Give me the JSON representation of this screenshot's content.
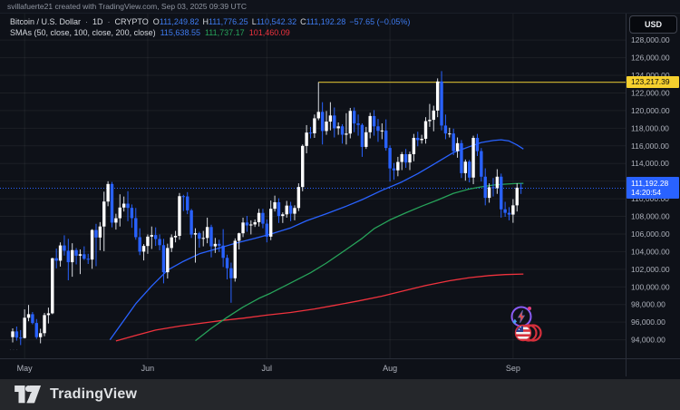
{
  "attribution": "svillafuerte21 created with TradingView.com, Sep 03, 2025 09:39 UTC",
  "legend": {
    "symbol": "Bitcoin / U.S. Dollar",
    "interval": "1D",
    "exchange": "CRYPTO",
    "separator": "·",
    "ohlc": {
      "o_label": "O",
      "o": "111,249.82",
      "h_label": "H",
      "h": "111,776.25",
      "l_label": "L",
      "l": "110,542.32",
      "c_label": "C",
      "c": "111,192.28",
      "change": "−57.65 (−0.05%)"
    },
    "sma_label": "SMAs (50, close, 100, close, 200, close)",
    "sma50_value": "115,638.55",
    "sma100_value": "111,737.17",
    "sma200_value": "101,460.09"
  },
  "axis": {
    "currency_button": "USD",
    "yellow_price_label": "123,217.39",
    "last_price_label": "111,192.28",
    "countdown": "14:20:54"
  },
  "watermark": "···",
  "footer": {
    "brand": "TradingView"
  },
  "icons": {
    "boost_sticker": "lightning-boost-emoji",
    "usa_sticker": "rolling-usa-flag-emoji",
    "logo": "tradingview-mark"
  },
  "colors": {
    "background": "#0e1118",
    "grid": "rgba(255,255,255,0.06)",
    "axis_text": "#aeb2bc",
    "up": "#ffffff",
    "down": "#2962ff",
    "sma50": "#2962ff",
    "sma100": "#27a35a",
    "sma200": "#ef323d",
    "level_yellow": "#bfa72e",
    "tag_yellow": "#f6d02e",
    "tag_blue": "#2962ff",
    "footer_bg": "#25272b"
  },
  "chart_data": {
    "type": "candlestick",
    "title": "Bitcoin / U.S. Dollar · 1D · CRYPTO",
    "x_ticks": [
      {
        "label": "May",
        "index": 3
      },
      {
        "label": "Jun",
        "index": 34
      },
      {
        "label": "Jul",
        "index": 64
      },
      {
        "label": "Aug",
        "index": 95
      },
      {
        "label": "Sep",
        "index": 126
      }
    ],
    "y_axis": {
      "min": 91900,
      "max": 131100,
      "tick_first": 94000,
      "tick_last": 128000,
      "tick_step": 2000,
      "format": "thousands_2dp"
    },
    "grid": true,
    "colors": {
      "up": "#ffffff",
      "down": "#2962ff",
      "up_wick": "#d8dbe0"
    },
    "levels": {
      "high_line": {
        "price": 123217.39,
        "from_index": 77,
        "color": "#bfa72e"
      },
      "last_price": {
        "price": 111192.28,
        "color": "#2962ff",
        "style": "dotted"
      }
    },
    "overlays": {
      "sma50": {
        "name": "SMA 50 close",
        "color": "#2962ff",
        "points": [
          [
            24.5,
            94000
          ],
          [
            28,
            96200
          ],
          [
            31,
            98100
          ],
          [
            35,
            100100
          ],
          [
            39,
            101900
          ],
          [
            43,
            102900
          ],
          [
            47,
            103750
          ],
          [
            52,
            104400
          ],
          [
            56,
            104950
          ],
          [
            61,
            105500
          ],
          [
            65,
            106000
          ],
          [
            70,
            106700
          ],
          [
            74,
            107500
          ],
          [
            79,
            108300
          ],
          [
            84,
            109150
          ],
          [
            88,
            109900
          ],
          [
            93,
            110950
          ],
          [
            98,
            111900
          ],
          [
            102,
            112850
          ],
          [
            106,
            113900
          ],
          [
            111,
            115250
          ],
          [
            115,
            115900
          ],
          [
            118,
            116380
          ],
          [
            121,
            116600
          ],
          [
            123,
            116690
          ],
          [
            125,
            116550
          ],
          [
            127,
            116100
          ],
          [
            128.6,
            115638.55
          ]
        ]
      },
      "sma100": {
        "name": "SMA 100 close",
        "color": "#27a35a",
        "points": [
          [
            46,
            93900
          ],
          [
            50,
            95300
          ],
          [
            54,
            96550
          ],
          [
            58,
            97700
          ],
          [
            62,
            98700
          ],
          [
            65,
            99300
          ],
          [
            70,
            100450
          ],
          [
            75,
            101600
          ],
          [
            79,
            102700
          ],
          [
            84,
            104250
          ],
          [
            88,
            105500
          ],
          [
            91,
            106600
          ],
          [
            95,
            107600
          ],
          [
            99,
            108400
          ],
          [
            103,
            109150
          ],
          [
            107,
            109850
          ],
          [
            111,
            110620
          ],
          [
            115,
            111100
          ],
          [
            118,
            111350
          ],
          [
            121,
            111550
          ],
          [
            124,
            111650
          ],
          [
            126.5,
            111720
          ],
          [
            128.6,
            111737.17
          ]
        ]
      },
      "sma200": {
        "name": "SMA 200 close",
        "color": "#ef323d",
        "points": [
          [
            26,
            93860
          ],
          [
            31,
            94500
          ],
          [
            36,
            95100
          ],
          [
            42,
            95550
          ],
          [
            47,
            95850
          ],
          [
            53,
            96200
          ],
          [
            58,
            96450
          ],
          [
            64,
            96800
          ],
          [
            70,
            97100
          ],
          [
            76,
            97500
          ],
          [
            81,
            97900
          ],
          [
            87,
            98400
          ],
          [
            93,
            98950
          ],
          [
            98,
            99500
          ],
          [
            104,
            100150
          ],
          [
            110,
            100700
          ],
          [
            115,
            101050
          ],
          [
            120,
            101280
          ],
          [
            124,
            101400
          ],
          [
            128.6,
            101460.09
          ]
        ]
      }
    },
    "candles": [
      [
        94300,
        95300,
        93700,
        94950
      ],
      [
        94950,
        95500,
        93900,
        94250
      ],
      [
        94250,
        95100,
        93400,
        94200
      ],
      [
        94200,
        97450,
        94150,
        96500
      ],
      [
        96500,
        97950,
        96100,
        96900
      ],
      [
        96900,
        97150,
        95750,
        95900
      ],
      [
        95900,
        96350,
        94100,
        94300
      ],
      [
        94300,
        95250,
        93600,
        94750
      ],
      [
        94750,
        97050,
        94400,
        96800
      ],
      [
        96800,
        97650,
        95850,
        97000
      ],
      [
        97000,
        103300,
        96900,
        103250
      ],
      [
        103250,
        104350,
        102100,
        102970
      ],
      [
        102970,
        105050,
        102300,
        104700
      ],
      [
        104700,
        105850,
        103550,
        104100
      ],
      [
        104100,
        105450,
        100750,
        102800
      ],
      [
        102800,
        104950,
        101150,
        104170
      ],
      [
        104170,
        104400,
        102550,
        103540
      ],
      [
        103540,
        104250,
        101450,
        103700
      ],
      [
        103700,
        104600,
        103050,
        103190
      ],
      [
        103190,
        103750,
        102600,
        103100
      ],
      [
        103100,
        106550,
        102050,
        106450
      ],
      [
        106450,
        107150,
        102350,
        105600
      ],
      [
        105600,
        107350,
        104150,
        106850
      ],
      [
        106850,
        110800,
        104050,
        109680
      ],
      [
        109680,
        111980,
        109150,
        111670
      ],
      [
        111670,
        111900,
        106750,
        107290
      ],
      [
        107290,
        108300,
        106500,
        107790
      ],
      [
        107790,
        110500,
        106850,
        109000
      ],
      [
        109000,
        110250,
        108550,
        109440
      ],
      [
        109440,
        110850,
        107450,
        108960
      ],
      [
        108960,
        109350,
        106700,
        107800
      ],
      [
        107800,
        108950,
        105350,
        105640
      ],
      [
        105640,
        106650,
        103600,
        104000
      ],
      [
        104000,
        104850,
        103000,
        104640
      ],
      [
        104640,
        105950,
        103750,
        105700
      ],
      [
        105700,
        106850,
        104300,
        105880
      ],
      [
        105880,
        106750,
        104650,
        105430
      ],
      [
        105430,
        105950,
        104150,
        104730
      ],
      [
        104730,
        105450,
        100400,
        101660
      ],
      [
        101660,
        104900,
        100950,
        104410
      ],
      [
        104410,
        105950,
        103950,
        105620
      ],
      [
        105620,
        106350,
        105050,
        105790
      ],
      [
        105790,
        110650,
        105350,
        110290
      ],
      [
        110290,
        110450,
        108600,
        110260
      ],
      [
        110260,
        110750,
        108250,
        108680
      ],
      [
        108680,
        108850,
        105550,
        105930
      ],
      [
        105930,
        106650,
        102750,
        106090
      ],
      [
        106090,
        106250,
        104450,
        105470
      ],
      [
        105470,
        106350,
        104600,
        105550
      ],
      [
        105550,
        107850,
        104950,
        106790
      ],
      [
        106790,
        107050,
        103350,
        104600
      ],
      [
        104600,
        105550,
        103850,
        104880
      ],
      [
        104880,
        105350,
        103950,
        104680
      ],
      [
        104680,
        106550,
        102250,
        103290
      ],
      [
        103290,
        103650,
        100850,
        102120
      ],
      [
        102120,
        102750,
        98200,
        100980
      ],
      [
        100980,
        105500,
        100600,
        105230
      ],
      [
        105230,
        106150,
        104250,
        106080
      ],
      [
        106080,
        107850,
        105650,
        107300
      ],
      [
        107300,
        108050,
        106250,
        106970
      ],
      [
        106970,
        107550,
        105950,
        107080
      ],
      [
        107080,
        107650,
        106800,
        107340
      ],
      [
        107340,
        108850,
        106850,
        108390
      ],
      [
        108390,
        108850,
        106650,
        107170
      ],
      [
        107170,
        107650,
        105050,
        105700
      ],
      [
        105700,
        109800,
        105300,
        108860
      ],
      [
        108860,
        110350,
        108550,
        109600
      ],
      [
        109600,
        110050,
        107250,
        108040
      ],
      [
        108040,
        108450,
        107250,
        108230
      ],
      [
        108230,
        109750,
        107850,
        109220
      ],
      [
        109220,
        109650,
        107450,
        108300
      ],
      [
        108300,
        109250,
        107550,
        108950
      ],
      [
        108950,
        111750,
        108600,
        111330
      ],
      [
        111330,
        116150,
        110850,
        115990
      ],
      [
        115990,
        118350,
        115150,
        117500
      ],
      [
        117500,
        118150,
        116850,
        117420
      ],
      [
        117420,
        119550,
        116900,
        119120
      ],
      [
        119120,
        123218,
        118900,
        119850
      ],
      [
        119850,
        120950,
        116150,
        117680
      ],
      [
        117680,
        119950,
        117250,
        118750
      ],
      [
        118750,
        120950,
        117750,
        119440
      ],
      [
        119440,
        120350,
        116950,
        117990
      ],
      [
        117990,
        118650,
        117250,
        118210
      ],
      [
        118210,
        118450,
        116250,
        117260
      ],
      [
        117260,
        119700,
        116150,
        117390
      ],
      [
        117390,
        120300,
        116850,
        119960
      ],
      [
        119960,
        120350,
        117550,
        118540
      ],
      [
        118540,
        119550,
        117150,
        118370
      ],
      [
        118370,
        118550,
        114750,
        115880
      ],
      [
        115880,
        118150,
        115650,
        117540
      ],
      [
        117540,
        119750,
        116850,
        119380
      ],
      [
        119380,
        120050,
        117150,
        118210
      ],
      [
        118210,
        119050,
        116450,
        117700
      ],
      [
        117700,
        118550,
        116750,
        117740
      ],
      [
        117740,
        119000,
        115450,
        115760
      ],
      [
        115760,
        116050,
        111950,
        113440
      ],
      [
        113440,
        114050,
        112150,
        113220
      ],
      [
        113220,
        114750,
        112550,
        114170
      ],
      [
        114170,
        115300,
        113250,
        115050
      ],
      [
        115050,
        115650,
        113500,
        114110
      ],
      [
        114110,
        115350,
        113250,
        115050
      ],
      [
        115050,
        117350,
        114250,
        116900
      ],
      [
        116900,
        117600,
        115950,
        116650
      ],
      [
        116650,
        117250,
        116250,
        116800
      ],
      [
        116800,
        119250,
        116250,
        118800
      ],
      [
        118800,
        120750,
        118150,
        118950
      ],
      [
        118950,
        120550,
        117650,
        120000
      ],
      [
        120000,
        123650,
        119250,
        123300
      ],
      [
        123300,
        124474,
        117750,
        118300
      ],
      [
        118300,
        119550,
        116750,
        117400
      ],
      [
        117400,
        118050,
        116950,
        117400
      ],
      [
        117400,
        117950,
        114950,
        115400
      ],
      [
        115400,
        116950,
        114650,
        116300
      ],
      [
        116300,
        116650,
        112350,
        112900
      ],
      [
        112900,
        114450,
        112050,
        114200
      ],
      [
        114200,
        114400,
        111850,
        112400
      ],
      [
        112400,
        117150,
        111650,
        116900
      ],
      [
        116900,
        117350,
        114850,
        115400
      ],
      [
        115400,
        115750,
        111950,
        112500
      ],
      [
        112500,
        113450,
        109250,
        110100
      ],
      [
        110100,
        111750,
        109550,
        111300
      ],
      [
        111300,
        112350,
        110250,
        111200
      ],
      [
        111200,
        113350,
        110550,
        112500
      ],
      [
        112500,
        112850,
        107850,
        108800
      ],
      [
        108800,
        109650,
        107950,
        108400
      ],
      [
        108400,
        109050,
        107550,
        108200
      ],
      [
        108200,
        109950,
        107270,
        109250
      ],
      [
        109250,
        111750,
        108550,
        111250
      ],
      [
        111249.82,
        111776.25,
        110542.32,
        111192.28
      ]
    ]
  }
}
